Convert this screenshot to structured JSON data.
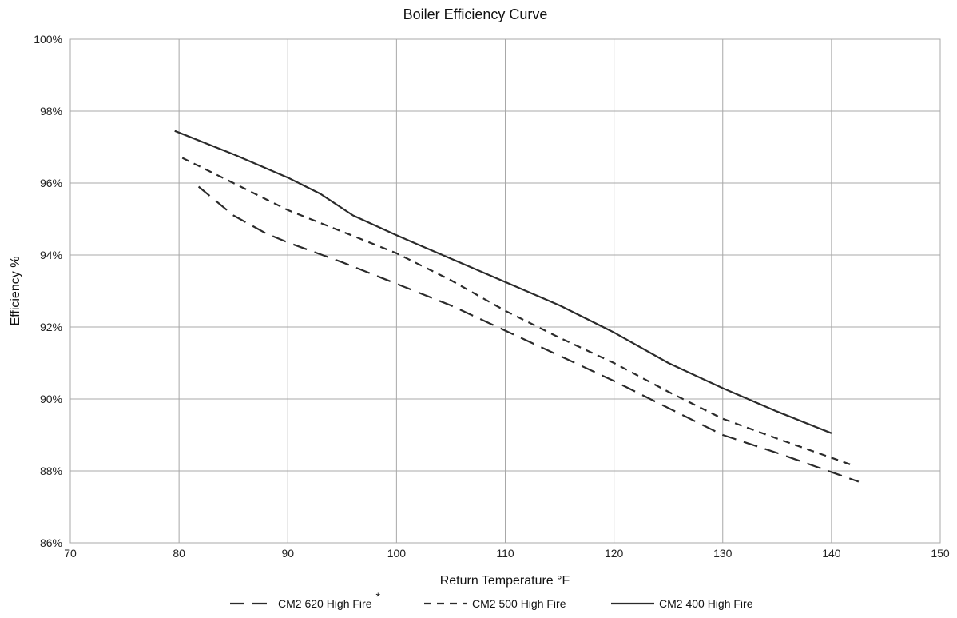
{
  "chart_data": {
    "type": "line",
    "title": "Boiler Efficiency Curve",
    "xlabel": "Return Temperature °F",
    "ylabel": "Efficiency %",
    "xlim": [
      70,
      150
    ],
    "ylim": [
      86,
      100
    ],
    "xticks": [
      70,
      80,
      90,
      100,
      110,
      120,
      130,
      140,
      150
    ],
    "xtick_labels": [
      "70",
      "80",
      "90",
      "100",
      "110",
      "120",
      "130",
      "140",
      "150"
    ],
    "yticks": [
      86,
      88,
      90,
      92,
      94,
      96,
      98,
      100
    ],
    "ytick_labels": [
      "86%",
      "88%",
      "90%",
      "92%",
      "94%",
      "96%",
      "98%",
      "100%"
    ],
    "grid": true,
    "legend_position": "bottom",
    "series": [
      {
        "name": "CM2 620 High Fire",
        "marker": "*",
        "style": "long-dash",
        "color": "#2b2b2b",
        "x": [
          81.8,
          85,
          88,
          90,
          95,
          100,
          105,
          110,
          115,
          120,
          125,
          130,
          135,
          142.5
        ],
        "y": [
          95.9,
          95.1,
          94.6,
          94.35,
          93.8,
          93.2,
          92.6,
          91.9,
          91.2,
          90.5,
          89.75,
          89.0,
          88.5,
          87.7
        ]
      },
      {
        "name": "CM2 500 High Fire",
        "style": "short-dash",
        "color": "#2b2b2b",
        "x": [
          80.3,
          85,
          90,
          95,
          100,
          105,
          110,
          115,
          120,
          125,
          130,
          135,
          142
        ],
        "y": [
          96.7,
          96.0,
          95.25,
          94.65,
          94.05,
          93.3,
          92.45,
          91.7,
          91.0,
          90.2,
          89.45,
          88.9,
          88.15
        ]
      },
      {
        "name": "CM2 400 High Fire",
        "style": "solid",
        "color": "#2b2b2b",
        "x": [
          79.6,
          85,
          90,
          93,
          96,
          100,
          105,
          110,
          115,
          120,
          125,
          130,
          135,
          140
        ],
        "y": [
          97.45,
          96.8,
          96.15,
          95.7,
          95.1,
          94.55,
          93.9,
          93.25,
          92.6,
          91.85,
          91.0,
          90.3,
          89.65,
          89.05
        ]
      }
    ]
  }
}
